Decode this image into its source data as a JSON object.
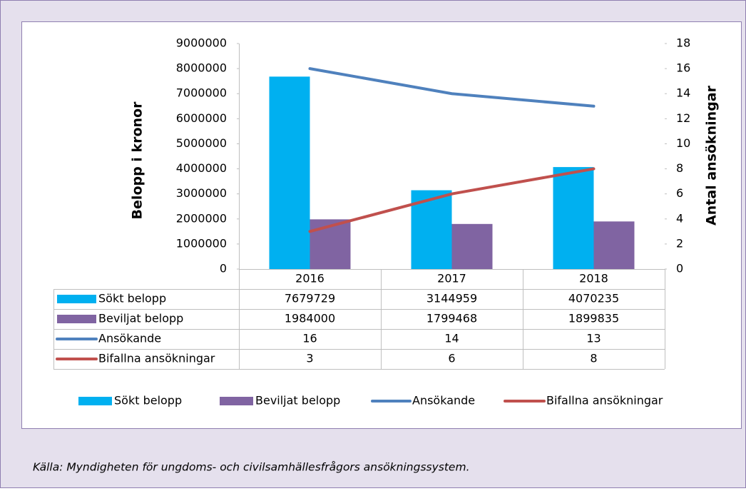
{
  "chart_data": {
    "type": "bar_line_table",
    "categories": [
      "2016",
      "2017",
      "2018"
    ],
    "series": [
      {
        "name": "Sökt belopp",
        "type": "bar",
        "color": "#00b0f0",
        "values": [
          7679729,
          3144959,
          4070235
        ]
      },
      {
        "name": "Beviljat belopp",
        "type": "bar",
        "color": "#8064a2",
        "values": [
          1984000,
          1799468,
          1899835
        ]
      },
      {
        "name": "Ansökande",
        "type": "line",
        "axis": "y2",
        "color": "#4f81bd",
        "values": [
          16,
          14,
          13
        ]
      },
      {
        "name": "Bifallna ansökningar",
        "type": "line",
        "axis": "y2",
        "color": "#c0504d",
        "values": [
          3,
          6,
          8
        ]
      }
    ],
    "ylabel": "Belopp i kronor",
    "y2label": "Antal ansökningar",
    "ylim": [
      0,
      9000000
    ],
    "yticks": [
      0,
      1000000,
      2000000,
      3000000,
      4000000,
      5000000,
      6000000,
      7000000,
      8000000,
      9000000
    ],
    "y2lim": [
      0,
      18
    ],
    "y2ticks": [
      0,
      2,
      4,
      6,
      8,
      10,
      12,
      14,
      16,
      18
    ],
    "legend": "bottom"
  },
  "source": "Källa: Myndigheten för ungdoms- och civilsamhällesfrågors ansökningssystem."
}
